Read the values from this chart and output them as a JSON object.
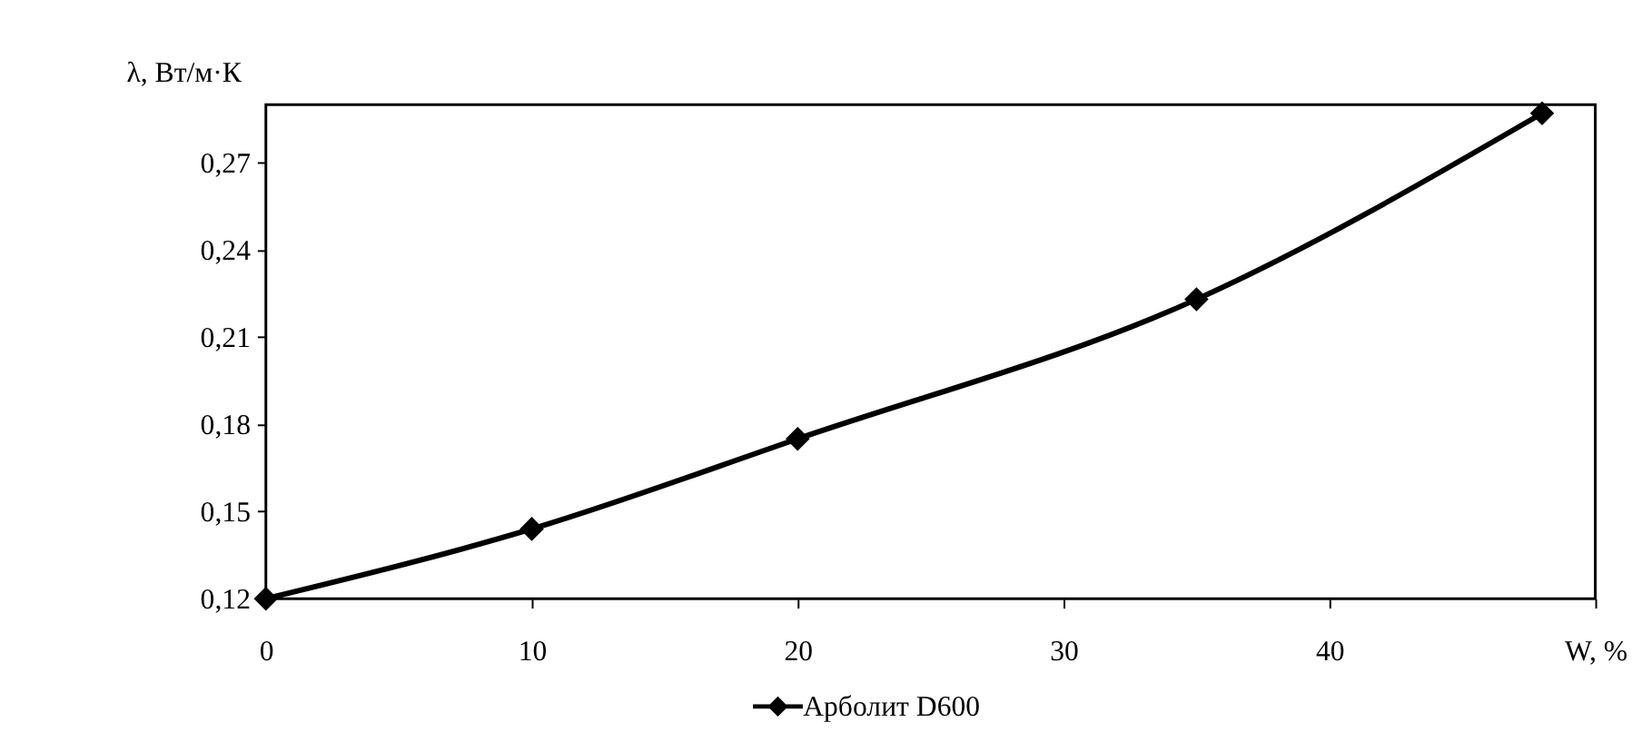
{
  "chart_data": {
    "type": "line",
    "xlabel": null,
    "ylabel": "λ, Вт/м·К",
    "x": [
      0,
      10,
      20,
      35,
      48
    ],
    "series": [
      {
        "name": "Арболит D600",
        "color": "#000000",
        "values": [
          0.12,
          0.144,
          0.175,
          0.223,
          0.287
        ]
      }
    ],
    "xlim": [
      0,
      50
    ],
    "xticks": [
      0,
      10,
      20,
      30,
      40,
      {
        "value": 50,
        "label": "W, %"
      }
    ],
    "ylim": [
      0.12,
      0.29
    ],
    "yticks": [
      {
        "value": 0.12,
        "label": "0,12"
      },
      {
        "value": 0.15,
        "label": "0,15"
      },
      {
        "value": 0.18,
        "label": "0,18"
      },
      {
        "value": 0.21,
        "label": "0,21"
      },
      {
        "value": 0.24,
        "label": "0,24"
      },
      {
        "value": 0.27,
        "label": "0,27"
      }
    ],
    "grid": false,
    "legend": "bottom",
    "marker": "diamond",
    "line_style": "solid"
  }
}
